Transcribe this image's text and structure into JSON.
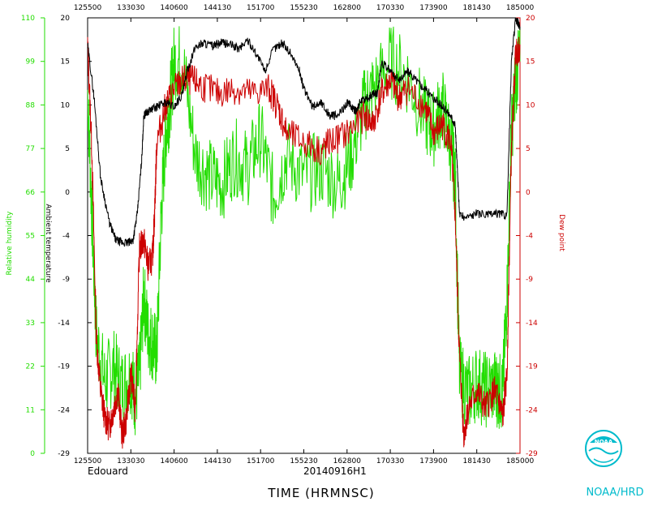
{
  "chart_data": {
    "type": "line",
    "xlabel": "TIME (HRMNSC)",
    "x_tick_labels": [
      "125500",
      "133030",
      "140600",
      "144130",
      "151700",
      "155230",
      "162800",
      "170330",
      "173900",
      "181430",
      "185000"
    ],
    "y_rh": {
      "label": "Relative humidity",
      "ticks": [
        "110",
        "99",
        "88",
        "77",
        "66",
        "55",
        "44",
        "33",
        "22",
        "11",
        "0"
      ],
      "ylim": [
        0,
        110
      ]
    },
    "y_temp": {
      "label": "Ambient temperature",
      "ticks": [
        "20",
        "15",
        "10",
        "5",
        "0",
        "-4",
        "-9",
        "-14",
        "-19",
        "-24",
        "-29"
      ],
      "ylim": [
        -29,
        20
      ]
    },
    "y_dew": {
      "label": "Dew point",
      "ticks": [
        "20",
        "15",
        "10",
        "5",
        "0",
        "-4",
        "-9",
        "-14",
        "-19",
        "-24",
        "-29"
      ],
      "ylim": [
        -29,
        20
      ]
    },
    "series": [
      {
        "name": "Ambient temperature",
        "axis": "temp",
        "color": "#000000",
        "x": [
          0,
          0.015,
          0.03,
          0.05,
          0.065,
          0.08,
          0.095,
          0.105,
          0.115,
          0.125,
          0.13,
          0.14,
          0.16,
          0.18,
          0.2,
          0.22,
          0.23,
          0.25,
          0.27,
          0.29,
          0.31,
          0.33,
          0.35,
          0.37,
          0.39,
          0.41,
          0.43,
          0.45,
          0.47,
          0.49,
          0.5,
          0.52,
          0.54,
          0.56,
          0.58,
          0.6,
          0.61,
          0.62,
          0.63,
          0.65,
          0.66,
          0.67,
          0.68,
          0.7,
          0.72,
          0.74,
          0.76,
          0.78,
          0.8,
          0.82,
          0.84,
          0.85,
          0.855,
          0.86,
          0.87,
          0.9,
          0.93,
          0.95,
          0.97,
          0.98,
          0.99,
          1.0
        ],
        "y": [
          17,
          11,
          2,
          -3,
          -5,
          -5.3,
          -5.3,
          -5,
          -2,
          4,
          9,
          9.5,
          10,
          10.5,
          10,
          11.5,
          14,
          16.8,
          17.2,
          16.8,
          17.2,
          17,
          16.5,
          17.5,
          16,
          14,
          16.5,
          17.2,
          16,
          14,
          12,
          10,
          10.5,
          9,
          9,
          10.5,
          10,
          9.5,
          10.5,
          11,
          11.5,
          11.5,
          15,
          14,
          13,
          14,
          13,
          12,
          11,
          10,
          9,
          8,
          3,
          -2,
          -2.5,
          -2,
          -2.2,
          -2,
          -2.2,
          15,
          20,
          19
        ]
      },
      {
        "name": "Dew point",
        "axis": "dew",
        "color": "#cc0000",
        "x": [
          0,
          0.01,
          0.02,
          0.03,
          0.04,
          0.05,
          0.06,
          0.07,
          0.08,
          0.09,
          0.1,
          0.11,
          0.12,
          0.13,
          0.14,
          0.15,
          0.155,
          0.16,
          0.18,
          0.2,
          0.22,
          0.24,
          0.26,
          0.3,
          0.34,
          0.38,
          0.42,
          0.44,
          0.46,
          0.5,
          0.54,
          0.56,
          0.6,
          0.64,
          0.66,
          0.68,
          0.7,
          0.72,
          0.74,
          0.78,
          0.8,
          0.82,
          0.84,
          0.85,
          0.86,
          0.87,
          0.88,
          0.9,
          0.92,
          0.94,
          0.95,
          0.96,
          0.97,
          0.98,
          0.99,
          1.0
        ],
        "y": [
          17,
          5,
          -16,
          -22,
          -25,
          -26,
          -24,
          -22,
          -27,
          -25,
          -20,
          -24,
          -6,
          -5,
          -8,
          -7,
          -2,
          6,
          10,
          12,
          13,
          13,
          12.5,
          11.5,
          12,
          11.5,
          12,
          10,
          7,
          6,
          5,
          6,
          7,
          9,
          8,
          11.5,
          13,
          11,
          12,
          10,
          7,
          8,
          6,
          -2,
          -18,
          -27,
          -24,
          -22,
          -24,
          -22,
          -23,
          -25,
          -20,
          5,
          16,
          17
        ]
      },
      {
        "name": "Relative humidity",
        "axis": "rh",
        "color": "#22dd00",
        "x": [
          0,
          0.01,
          0.02,
          0.04,
          0.06,
          0.08,
          0.1,
          0.11,
          0.12,
          0.13,
          0.14,
          0.15,
          0.16,
          0.17,
          0.18,
          0.19,
          0.2,
          0.22,
          0.25,
          0.28,
          0.31,
          0.34,
          0.37,
          0.4,
          0.43,
          0.46,
          0.5,
          0.54,
          0.58,
          0.61,
          0.64,
          0.66,
          0.7,
          0.74,
          0.78,
          0.8,
          0.82,
          0.84,
          0.85,
          0.86,
          0.88,
          0.9,
          0.92,
          0.94,
          0.95,
          0.96,
          0.97,
          0.98,
          0.99,
          1.0
        ],
        "y": [
          92,
          60,
          30,
          18,
          22,
          17,
          20,
          14,
          20,
          40,
          30,
          28,
          25,
          60,
          80,
          88,
          99,
          99,
          75,
          70,
          68,
          75,
          72,
          80,
          65,
          75,
          70,
          72,
          68,
          75,
          88,
          92,
          99,
          95,
          85,
          82,
          88,
          78,
          70,
          20,
          15,
          18,
          16,
          17,
          16,
          15,
          40,
          80,
          95,
          99
        ]
      }
    ]
  },
  "labels": {
    "storm": "Edouard",
    "mission": "20140916H1",
    "org": "NOAA/HRD",
    "logo_text": "NOAA"
  },
  "colors": {
    "rh": "#22dd00",
    "dew": "#cc0000",
    "temp": "#000000",
    "logo": "#00bbcc"
  }
}
